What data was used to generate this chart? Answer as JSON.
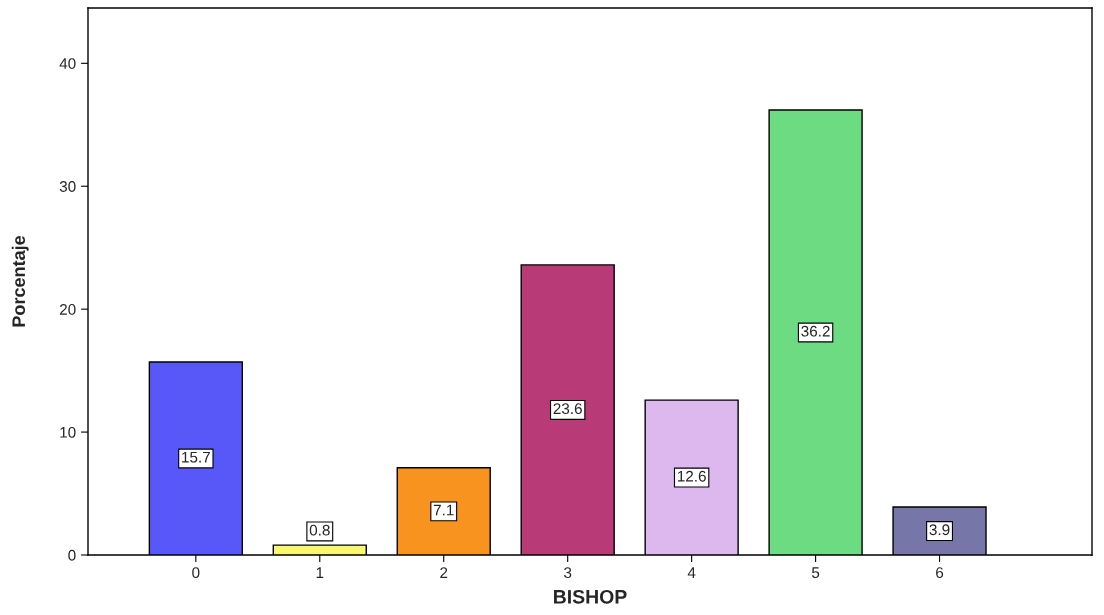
{
  "chart_data": {
    "type": "bar",
    "xlabel": "BISHOP",
    "ylabel": "Porcentaje",
    "categories": [
      "0",
      "1",
      "2",
      "3",
      "4",
      "5",
      "6"
    ],
    "values": [
      15.7,
      0.8,
      7.1,
      23.6,
      12.6,
      36.2,
      3.9
    ],
    "colors": [
      "#5858f8",
      "#f8f870",
      "#f7931e",
      "#b83b78",
      "#dcb8ef",
      "#6ddb82",
      "#7676a8"
    ],
    "ylim": [
      0,
      44.5
    ],
    "yticks": [
      0,
      10,
      20,
      30,
      40
    ],
    "grid": false,
    "data_labels": true
  }
}
